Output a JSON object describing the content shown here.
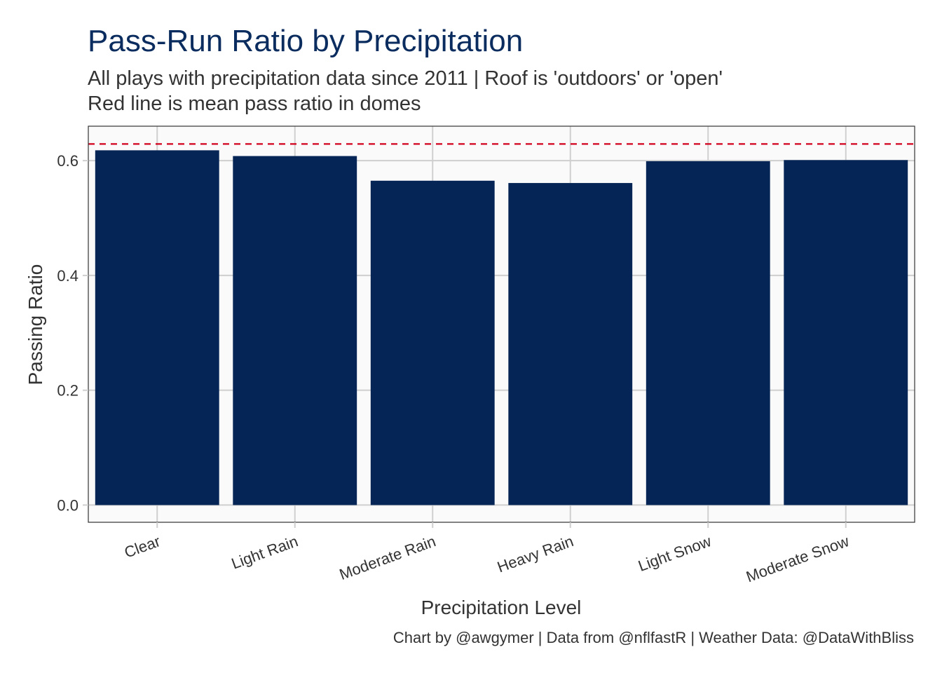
{
  "colors": {
    "title": "#0b2c5e",
    "text": "#333333",
    "bar": "#052556",
    "reference_line": "#d1001c",
    "panel_background": "#fafafa",
    "grid": "#cfcfcf",
    "panel_border": "#333333"
  },
  "chart_data": {
    "type": "bar",
    "title": "Pass-Run Ratio by Precipitation",
    "subtitle": [
      "All plays with precipitation data since 2011 | Roof is 'outdoors' or 'open'",
      "Red line is mean pass ratio in domes"
    ],
    "xlabel": "Precipitation Level",
    "ylabel": "Passing Ratio",
    "caption": "Chart by @awgymer | Data from @nflfastR | Weather Data: @DataWithBliss",
    "categories": [
      "Clear",
      "Light Rain",
      "Moderate Rain",
      "Heavy Rain",
      "Light Snow",
      "Moderate Snow"
    ],
    "values": [
      0.618,
      0.608,
      0.565,
      0.561,
      0.599,
      0.601
    ],
    "reference_line": {
      "value": 0.629,
      "style": "dashed"
    },
    "ylim": [
      -0.03,
      0.66
    ],
    "yticks": [
      0.0,
      0.2,
      0.4,
      0.6
    ],
    "ytick_labels": [
      "0.0",
      "0.2",
      "0.4",
      "0.6"
    ],
    "grid": true,
    "legend": "none"
  }
}
